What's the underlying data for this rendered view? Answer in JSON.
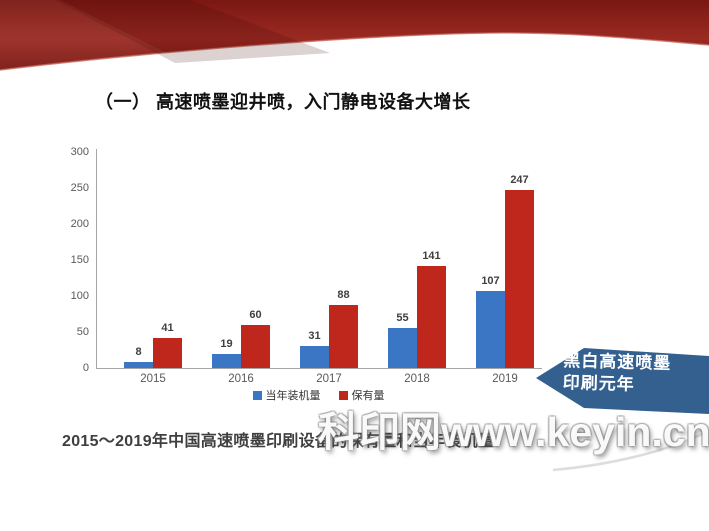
{
  "slide": {
    "title": "（一） 高速喷墨迎井喷，入门静电设备大增长",
    "caption": "2015～2019年中国高速喷墨印刷设备的保有量和当年装机量",
    "callout": {
      "line1": "黑白高速喷墨",
      "line2": "印刷元年"
    },
    "watermark": "科印网www.keyin.cn"
  },
  "colors": {
    "bar_blue": "#3A76C4",
    "bar_red": "#C0271C",
    "callout_blue": "#33608F",
    "ribbon_red_dark": "#7A1711",
    "ribbon_red_light": "#9A2A22",
    "ribbon_edge_highlight": "#C4685C",
    "axis_gray": "#A6A6A6",
    "label_gray": "#404040"
  },
  "chart_data": {
    "type": "bar",
    "categories": [
      "2015",
      "2016",
      "2017",
      "2018",
      "2019"
    ],
    "series": [
      {
        "key": "annual-installs",
        "name": "当年装机量",
        "color": "#3A76C4",
        "values": [
          8,
          19,
          31,
          55,
          107
        ]
      },
      {
        "key": "holdings",
        "name": "保有量",
        "color": "#C0271C",
        "values": [
          41,
          60,
          88,
          141,
          247
        ]
      }
    ],
    "title": "",
    "xlabel": "",
    "ylabel": "",
    "ylim": [
      0,
      300
    ],
    "ytick_step": 50,
    "grid": false,
    "legend_position": "bottom",
    "value_labels": true
  }
}
